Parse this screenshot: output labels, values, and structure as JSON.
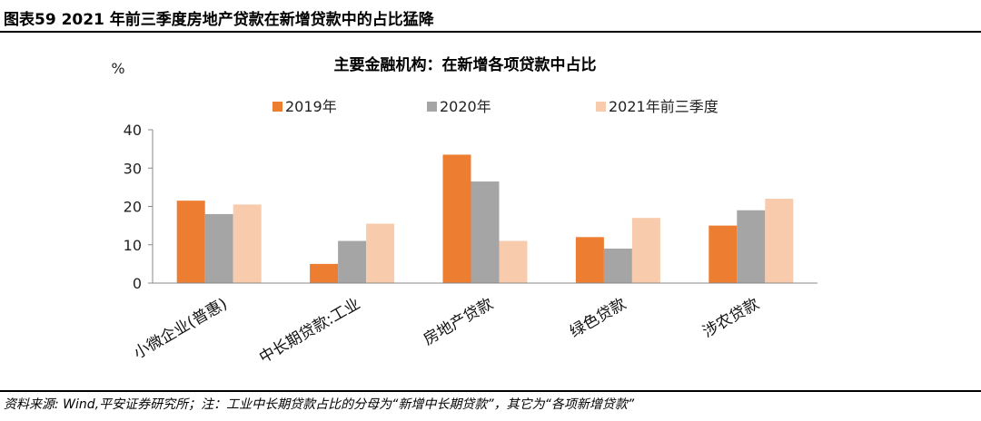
{
  "header": {
    "title": "图表59    2021 年前三季度房地产贷款在新增贷款中的占比猛降"
  },
  "footer": {
    "source": "资料来源: Wind,平安证券研究所；注：工业中长期贷款占比的分母为“新增中长期贷款”，其它为“各项新增贷款”"
  },
  "chart_data": {
    "type": "bar",
    "title": "主要金融机构：在新增各项贷款中占比",
    "ylabel": "%",
    "ylim": [
      0,
      40
    ],
    "yticks": [
      0,
      10,
      20,
      30,
      40
    ],
    "categories": [
      "小微企业(普惠)",
      "中长期贷款:工业",
      "房地产贷款",
      "绿色贷款",
      "涉农贷款"
    ],
    "series": [
      {
        "name": "2019年",
        "color": "#ED7D31",
        "values": [
          21.5,
          5,
          33.5,
          12,
          15
        ]
      },
      {
        "name": "2020年",
        "color": "#A5A5A5",
        "values": [
          18,
          11,
          26.5,
          9,
          19
        ]
      },
      {
        "name": "2021年前三季度",
        "color": "#F8CBAD",
        "values": [
          20.5,
          15.5,
          11,
          17,
          22
        ]
      }
    ],
    "legend_position": "top",
    "grid": false
  }
}
